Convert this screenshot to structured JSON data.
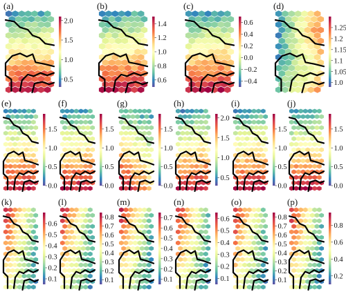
{
  "chart_data": {
    "type": "heatmap",
    "colormap": [
      "#5e4fa2",
      "#3288bd",
      "#66c2a5",
      "#abdda4",
      "#e6f598",
      "#ffffbf",
      "#fee08b",
      "#fdae61",
      "#f46d43",
      "#d53e4f",
      "#9e0142"
    ],
    "panels": [
      {
        "label": "(a)",
        "gradient": "top",
        "clim": [
          0.3,
          2.1
        ],
        "ticks": [
          "2.0",
          "1.5",
          "1.0",
          "0.5"
        ],
        "tick_values": [
          2.0,
          1.5,
          1.0,
          0.5
        ]
      },
      {
        "label": "(b)",
        "gradient": "top",
        "clim": [
          0.5,
          1.5
        ],
        "ticks": [
          "1.4",
          "1.2",
          "1.0",
          "0.8",
          "0.6"
        ],
        "tick_values": [
          1.4,
          1.2,
          1.0,
          0.8,
          0.6
        ]
      },
      {
        "label": "(c)",
        "gradient": "top",
        "clim": [
          -0.5,
          0.7
        ],
        "ticks": [
          "0.6",
          "0.4",
          "0.2",
          "0.0",
          "−0.2",
          "−0.4"
        ],
        "tick_values": [
          0.6,
          0.4,
          0.2,
          0.0,
          -0.2,
          -0.4
        ]
      },
      {
        "label": "(d)",
        "gradient": "right",
        "clim": [
          0.98,
          1.3
        ],
        "ticks": [
          "1.25",
          "1.2",
          "1.15",
          "1.1",
          "1.05",
          "1.0"
        ],
        "tick_values": [
          1.25,
          1.2,
          1.15,
          1.1,
          1.05,
          1.0
        ]
      },
      {
        "label": "(e)",
        "gradient": "top",
        "clim": [
          0.0,
          1.9
        ],
        "ticks": [
          "1.5",
          "1.0",
          "0.5",
          "0.0"
        ],
        "tick_values": [
          1.5,
          1.0,
          0.5,
          0.0
        ]
      },
      {
        "label": "(f)",
        "gradient": "top",
        "clim": [
          0.0,
          1.9
        ],
        "ticks": [
          "1.5",
          "1.0",
          "0.5",
          "0.0"
        ],
        "tick_values": [
          1.5,
          1.0,
          0.5,
          0.0
        ]
      },
      {
        "label": "(g)",
        "gradient": "diag",
        "clim": [
          0.0,
          1.9
        ],
        "ticks": [
          "1.5",
          "1.0",
          "0.5",
          "0.0"
        ],
        "tick_values": [
          1.5,
          1.0,
          0.5,
          0.0
        ]
      },
      {
        "label": "(h)",
        "gradient": "top",
        "clim": [
          0.3,
          2.1
        ],
        "ticks": [
          "2.0",
          "1.5",
          "1.0",
          "0.5"
        ],
        "tick_values": [
          2.0,
          1.5,
          1.0,
          0.5
        ]
      },
      {
        "label": "(i)",
        "gradient": "top",
        "clim": [
          0.0,
          1.9
        ],
        "ticks": [
          "1.5",
          "1.0",
          "0.5",
          "0.0"
        ],
        "tick_values": [
          1.5,
          1.0,
          0.5,
          0.0
        ]
      },
      {
        "label": "(j)",
        "gradient": "top",
        "clim": [
          0.0,
          1.9
        ],
        "ticks": [
          "1.5",
          "1.0",
          "0.5",
          "0.0"
        ],
        "tick_values": [
          1.5,
          1.0,
          0.5,
          0.0
        ]
      },
      {
        "label": "(k)",
        "gradient": "left",
        "clim": [
          0.05,
          0.7
        ],
        "ticks": [
          "0.6",
          "0.5",
          "0.4",
          "0.3",
          "0.2",
          "0.1"
        ],
        "tick_values": [
          0.6,
          0.5,
          0.4,
          0.3,
          0.2,
          0.1
        ]
      },
      {
        "label": "(l)",
        "gradient": "left",
        "clim": [
          0.05,
          0.85
        ],
        "ticks": [
          "0.8",
          "0.7",
          "0.6",
          "0.5",
          "0.4",
          "0.3",
          "0.2",
          "0.1"
        ],
        "tick_values": [
          0.8,
          0.7,
          0.6,
          0.5,
          0.4,
          0.3,
          0.2,
          0.1
        ]
      },
      {
        "label": "(m)",
        "gradient": "left",
        "clim": [
          0.05,
          0.75
        ],
        "ticks": [
          "0.7",
          "0.6",
          "0.5",
          "0.4",
          "0.3",
          "0.2",
          "0.1"
        ],
        "tick_values": [
          0.7,
          0.6,
          0.5,
          0.4,
          0.3,
          0.2,
          0.1
        ]
      },
      {
        "label": "(n)",
        "gradient": "left",
        "clim": [
          0.05,
          0.65
        ],
        "ticks": [
          "0.6",
          "0.5",
          "0.4",
          "0.3",
          "0.2",
          "0.1"
        ],
        "tick_values": [
          0.6,
          0.5,
          0.4,
          0.3,
          0.2,
          0.1
        ]
      },
      {
        "label": "(o)",
        "gradient": "left",
        "clim": [
          0.05,
          0.85
        ],
        "ticks": [
          "0.8",
          "0.7",
          "0.6",
          "0.5",
          "0.4",
          "0.3",
          "0.2",
          "0.1"
        ],
        "tick_values": [
          0.8,
          0.7,
          0.6,
          0.5,
          0.4,
          0.3,
          0.2,
          0.1
        ]
      },
      {
        "label": "(p)",
        "gradient": "left",
        "clim": [
          0.1,
          0.95
        ],
        "ticks": [
          "0.8",
          "0.6",
          "0.4",
          "0.2"
        ],
        "tick_values": [
          0.8,
          0.6,
          0.4,
          0.2
        ]
      }
    ]
  }
}
